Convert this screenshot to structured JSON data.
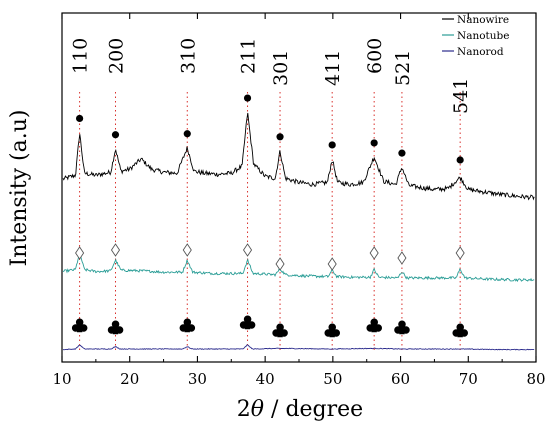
{
  "chart_data": {
    "type": "line",
    "xlabel_prefix": "2",
    "xlabel_symbol": "θ",
    "xlabel_suffix": " / degree",
    "ylabel": "Intensity (a.u)",
    "xlim": [
      10,
      80
    ],
    "x_ticks": [
      "10",
      "20",
      "30",
      "40",
      "50",
      "60",
      "70",
      "80"
    ],
    "grid": false,
    "legend_position": "top-right",
    "peaks": [
      {
        "label": "110",
        "x": 12.6
      },
      {
        "label": "200",
        "x": 17.9
      },
      {
        "label": "310",
        "x": 28.5
      },
      {
        "label": "211",
        "x": 37.4
      },
      {
        "label": "301",
        "x": 42.2
      },
      {
        "label": "411",
        "x": 49.9
      },
      {
        "label": "600",
        "x": 56.1
      },
      {
        "label": "521",
        "x": 60.2
      },
      {
        "label": "541",
        "x": 68.8
      }
    ],
    "series": [
      {
        "name": "Nanowire",
        "color": "#000000",
        "marker": "filled-circle",
        "x": [
          10,
          12,
          12.6,
          13.3,
          15,
          17.2,
          17.9,
          18.7,
          20,
          21.7,
          23.2,
          25,
          27,
          28.5,
          29.5,
          31,
          33,
          35,
          36.6,
          37.4,
          38.3,
          40,
          41.5,
          42.2,
          43,
          45,
          47,
          49.2,
          49.9,
          50.7,
          52.5,
          54.5,
          56.1,
          57.5,
          59.3,
          60.2,
          61.2,
          63,
          65,
          67,
          68.8,
          70,
          72,
          75,
          78,
          80
        ],
        "y": [
          0.32,
          0.36,
          0.78,
          0.38,
          0.36,
          0.39,
          0.62,
          0.4,
          0.42,
          0.52,
          0.42,
          0.39,
          0.38,
          0.63,
          0.4,
          0.38,
          0.37,
          0.38,
          0.45,
          0.98,
          0.47,
          0.35,
          0.33,
          0.6,
          0.33,
          0.29,
          0.27,
          0.29,
          0.52,
          0.29,
          0.27,
          0.29,
          0.54,
          0.3,
          0.27,
          0.44,
          0.26,
          0.24,
          0.22,
          0.23,
          0.34,
          0.22,
          0.2,
          0.17,
          0.15,
          0.14
        ]
      },
      {
        "name": "Nanotube",
        "color": "#2a9d96",
        "marker": "open-diamond",
        "x": [
          10,
          12,
          12.6,
          13.3,
          15,
          17.2,
          17.9,
          18.7,
          22,
          25,
          27.8,
          28.5,
          29.3,
          32,
          36.7,
          37.4,
          38.2,
          41.5,
          42.2,
          43,
          46,
          49.3,
          49.9,
          50.6,
          53,
          55.5,
          56.1,
          56.8,
          59.6,
          60.2,
          60.9,
          65,
          68.2,
          68.8,
          69.5,
          73,
          77,
          80
        ],
        "y": [
          0.32,
          0.35,
          0.62,
          0.35,
          0.32,
          0.33,
          0.5,
          0.34,
          0.33,
          0.31,
          0.31,
          0.5,
          0.31,
          0.29,
          0.29,
          0.5,
          0.29,
          0.27,
          0.36,
          0.27,
          0.25,
          0.24,
          0.34,
          0.24,
          0.23,
          0.23,
          0.35,
          0.23,
          0.22,
          0.32,
          0.22,
          0.22,
          0.22,
          0.36,
          0.22,
          0.2,
          0.19,
          0.19
        ]
      },
      {
        "name": "Nanorod",
        "color": "#2a2a8c",
        "marker": "club",
        "x": [
          10,
          12,
          12.6,
          13.3,
          17.2,
          17.9,
          18.6,
          27.8,
          28.5,
          29.2,
          36.7,
          37.4,
          38.1,
          42.2,
          49.9,
          56.1,
          60.2,
          68.8,
          75,
          80
        ],
        "y": [
          0.04,
          0.05,
          0.12,
          0.05,
          0.05,
          0.09,
          0.05,
          0.05,
          0.09,
          0.05,
          0.05,
          0.12,
          0.05,
          0.06,
          0.05,
          0.06,
          0.05,
          0.05,
          0.04,
          0.04
        ]
      }
    ]
  }
}
